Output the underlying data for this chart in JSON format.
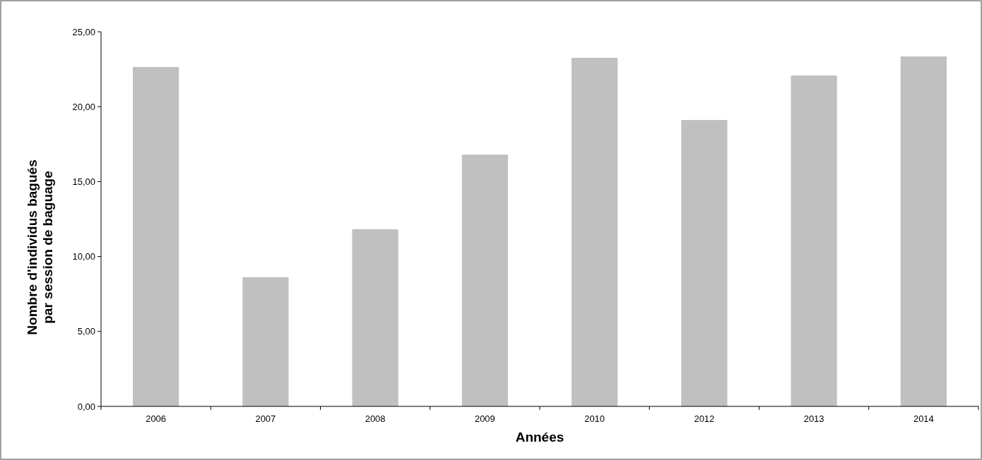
{
  "chart_data": {
    "type": "bar",
    "xlabel": "Années",
    "ylabel": "Nombre d'individus bagués par session de baguage",
    "categories": [
      "2006",
      "2007",
      "2008",
      "2009",
      "2010",
      "2012",
      "2013",
      "2014"
    ],
    "values": [
      22.65,
      8.62,
      11.82,
      16.8,
      23.26,
      19.11,
      22.08,
      23.35
    ],
    "color": "#c0c0c0",
    "ylim": [
      0,
      25
    ],
    "yticks": [
      {
        "value": 0,
        "label": "0,00"
      },
      {
        "value": 5,
        "label": "5,00"
      },
      {
        "value": 10,
        "label": "10,00"
      },
      {
        "value": 15,
        "label": "15,00"
      },
      {
        "value": 20,
        "label": "20,00"
      },
      {
        "value": 25,
        "label": "25,00"
      }
    ],
    "grid": false
  }
}
